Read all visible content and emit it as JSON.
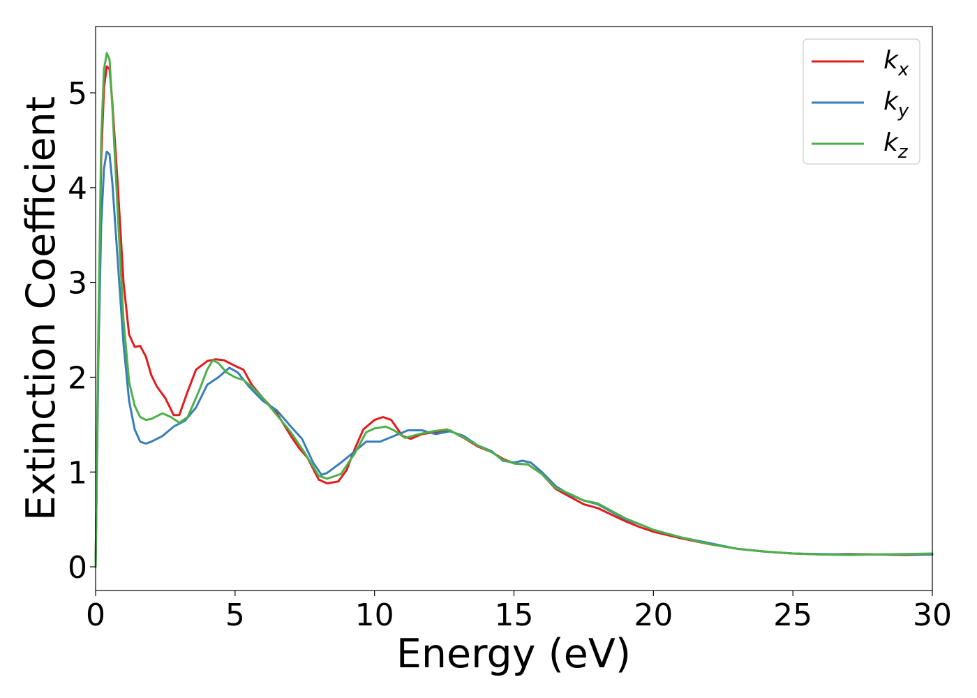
{
  "chart_data": {
    "type": "line",
    "title": "",
    "xlabel": "Energy (eV)",
    "ylabel": "Extinction Coefficient",
    "xlim": [
      0,
      30
    ],
    "ylim": [
      -0.25,
      5.7
    ],
    "xticks": [
      0,
      5,
      10,
      15,
      20,
      25,
      30
    ],
    "yticks": [
      0,
      1,
      2,
      3,
      4,
      5
    ],
    "grid": false,
    "legend_position": "top-right",
    "series": [
      {
        "name": "k_x",
        "label_base": "k",
        "label_sub": "x",
        "color": "#e41a1c",
        "points": [
          [
            0.0,
            0.0
          ],
          [
            0.1,
            2.4
          ],
          [
            0.2,
            4.3
          ],
          [
            0.3,
            5.05
          ],
          [
            0.4,
            5.28
          ],
          [
            0.5,
            5.25
          ],
          [
            0.6,
            4.9
          ],
          [
            0.8,
            4.0
          ],
          [
            1.0,
            3.0
          ],
          [
            1.2,
            2.45
          ],
          [
            1.4,
            2.32
          ],
          [
            1.6,
            2.33
          ],
          [
            1.8,
            2.22
          ],
          [
            2.0,
            2.02
          ],
          [
            2.2,
            1.9
          ],
          [
            2.5,
            1.78
          ],
          [
            2.8,
            1.6
          ],
          [
            3.0,
            1.6
          ],
          [
            3.3,
            1.85
          ],
          [
            3.6,
            2.08
          ],
          [
            4.0,
            2.17
          ],
          [
            4.3,
            2.19
          ],
          [
            4.6,
            2.18
          ],
          [
            5.0,
            2.12
          ],
          [
            5.3,
            2.08
          ],
          [
            5.6,
            1.92
          ],
          [
            6.0,
            1.78
          ],
          [
            6.5,
            1.62
          ],
          [
            7.0,
            1.38
          ],
          [
            7.3,
            1.25
          ],
          [
            7.6,
            1.15
          ],
          [
            8.0,
            0.92
          ],
          [
            8.3,
            0.88
          ],
          [
            8.7,
            0.9
          ],
          [
            9.0,
            1.02
          ],
          [
            9.3,
            1.25
          ],
          [
            9.6,
            1.45
          ],
          [
            10.0,
            1.55
          ],
          [
            10.3,
            1.58
          ],
          [
            10.6,
            1.55
          ],
          [
            11.0,
            1.38
          ],
          [
            11.3,
            1.35
          ],
          [
            11.7,
            1.4
          ],
          [
            12.2,
            1.42
          ],
          [
            12.7,
            1.44
          ],
          [
            13.2,
            1.36
          ],
          [
            13.7,
            1.27
          ],
          [
            14.2,
            1.21
          ],
          [
            14.6,
            1.14
          ],
          [
            15.0,
            1.09
          ],
          [
            15.5,
            1.08
          ],
          [
            16.0,
            0.98
          ],
          [
            16.5,
            0.82
          ],
          [
            17.0,
            0.74
          ],
          [
            17.5,
            0.66
          ],
          [
            18.0,
            0.62
          ],
          [
            18.5,
            0.55
          ],
          [
            19.0,
            0.48
          ],
          [
            19.5,
            0.42
          ],
          [
            20.0,
            0.37
          ],
          [
            21.0,
            0.3
          ],
          [
            22.0,
            0.24
          ],
          [
            23.0,
            0.19
          ],
          [
            24.0,
            0.16
          ],
          [
            25.0,
            0.14
          ],
          [
            26.0,
            0.13
          ],
          [
            27.0,
            0.135
          ],
          [
            28.0,
            0.13
          ],
          [
            29.0,
            0.125
          ],
          [
            30.0,
            0.13
          ]
        ]
      },
      {
        "name": "k_y",
        "label_base": "k",
        "label_sub": "y",
        "color": "#377eb8",
        "points": [
          [
            0.0,
            0.0
          ],
          [
            0.1,
            2.2
          ],
          [
            0.2,
            3.6
          ],
          [
            0.3,
            4.2
          ],
          [
            0.4,
            4.38
          ],
          [
            0.5,
            4.35
          ],
          [
            0.6,
            4.05
          ],
          [
            0.8,
            3.2
          ],
          [
            1.0,
            2.35
          ],
          [
            1.2,
            1.75
          ],
          [
            1.4,
            1.45
          ],
          [
            1.6,
            1.32
          ],
          [
            1.8,
            1.3
          ],
          [
            2.0,
            1.32
          ],
          [
            2.4,
            1.38
          ],
          [
            2.8,
            1.48
          ],
          [
            3.2,
            1.54
          ],
          [
            3.6,
            1.68
          ],
          [
            4.0,
            1.92
          ],
          [
            4.4,
            2.0
          ],
          [
            4.8,
            2.1
          ],
          [
            5.1,
            2.05
          ],
          [
            5.5,
            1.9
          ],
          [
            6.0,
            1.75
          ],
          [
            6.5,
            1.65
          ],
          [
            7.0,
            1.48
          ],
          [
            7.4,
            1.35
          ],
          [
            7.8,
            1.1
          ],
          [
            8.1,
            0.97
          ],
          [
            8.3,
            0.99
          ],
          [
            8.8,
            1.1
          ],
          [
            9.3,
            1.22
          ],
          [
            9.7,
            1.32
          ],
          [
            10.2,
            1.32
          ],
          [
            10.7,
            1.38
          ],
          [
            11.2,
            1.44
          ],
          [
            11.7,
            1.44
          ],
          [
            12.2,
            1.4
          ],
          [
            12.7,
            1.43
          ],
          [
            13.2,
            1.38
          ],
          [
            13.7,
            1.28
          ],
          [
            14.2,
            1.22
          ],
          [
            14.6,
            1.12
          ],
          [
            15.0,
            1.1
          ],
          [
            15.3,
            1.12
          ],
          [
            15.6,
            1.1
          ],
          [
            16.0,
            1.0
          ],
          [
            16.5,
            0.85
          ],
          [
            17.0,
            0.76
          ],
          [
            17.5,
            0.7
          ],
          [
            18.0,
            0.66
          ],
          [
            18.5,
            0.58
          ],
          [
            19.0,
            0.5
          ],
          [
            19.5,
            0.45
          ],
          [
            20.0,
            0.39
          ],
          [
            21.0,
            0.31
          ],
          [
            22.0,
            0.25
          ],
          [
            23.0,
            0.19
          ],
          [
            24.0,
            0.16
          ],
          [
            25.0,
            0.14
          ],
          [
            26.0,
            0.135
          ],
          [
            27.0,
            0.13
          ],
          [
            28.0,
            0.13
          ],
          [
            29.0,
            0.13
          ],
          [
            30.0,
            0.13
          ]
        ]
      },
      {
        "name": "k_z",
        "label_base": "k",
        "label_sub": "z",
        "color": "#4daf4a",
        "points": [
          [
            0.0,
            0.0
          ],
          [
            0.1,
            2.5
          ],
          [
            0.2,
            4.5
          ],
          [
            0.3,
            5.25
          ],
          [
            0.4,
            5.42
          ],
          [
            0.5,
            5.35
          ],
          [
            0.6,
            4.85
          ],
          [
            0.8,
            3.7
          ],
          [
            1.0,
            2.6
          ],
          [
            1.2,
            1.95
          ],
          [
            1.4,
            1.7
          ],
          [
            1.6,
            1.58
          ],
          [
            1.8,
            1.55
          ],
          [
            2.0,
            1.56
          ],
          [
            2.4,
            1.62
          ],
          [
            2.7,
            1.58
          ],
          [
            3.0,
            1.52
          ],
          [
            3.3,
            1.58
          ],
          [
            3.7,
            1.85
          ],
          [
            4.0,
            2.08
          ],
          [
            4.2,
            2.18
          ],
          [
            4.4,
            2.15
          ],
          [
            4.7,
            2.05
          ],
          [
            5.0,
            2.0
          ],
          [
            5.3,
            1.97
          ],
          [
            5.6,
            1.9
          ],
          [
            6.0,
            1.78
          ],
          [
            6.5,
            1.6
          ],
          [
            7.0,
            1.42
          ],
          [
            7.5,
            1.2
          ],
          [
            8.0,
            0.96
          ],
          [
            8.3,
            0.93
          ],
          [
            8.8,
            0.98
          ],
          [
            9.3,
            1.2
          ],
          [
            9.7,
            1.42
          ],
          [
            10.0,
            1.46
          ],
          [
            10.4,
            1.48
          ],
          [
            10.7,
            1.44
          ],
          [
            11.1,
            1.36
          ],
          [
            11.6,
            1.4
          ],
          [
            12.1,
            1.43
          ],
          [
            12.6,
            1.45
          ],
          [
            13.1,
            1.38
          ],
          [
            13.7,
            1.28
          ],
          [
            14.2,
            1.21
          ],
          [
            14.6,
            1.13
          ],
          [
            15.0,
            1.09
          ],
          [
            15.5,
            1.08
          ],
          [
            16.0,
            0.98
          ],
          [
            16.5,
            0.83
          ],
          [
            17.0,
            0.77
          ],
          [
            17.5,
            0.7
          ],
          [
            18.0,
            0.67
          ],
          [
            18.5,
            0.59
          ],
          [
            19.0,
            0.51
          ],
          [
            19.5,
            0.45
          ],
          [
            20.0,
            0.39
          ],
          [
            21.0,
            0.31
          ],
          [
            22.0,
            0.24
          ],
          [
            23.0,
            0.19
          ],
          [
            24.0,
            0.16
          ],
          [
            25.0,
            0.14
          ],
          [
            26.0,
            0.13
          ],
          [
            27.0,
            0.125
          ],
          [
            28.0,
            0.13
          ],
          [
            29.0,
            0.135
          ],
          [
            30.0,
            0.14
          ]
        ]
      }
    ]
  }
}
